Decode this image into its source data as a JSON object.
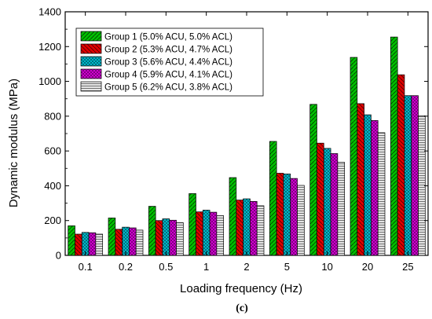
{
  "chart_data": {
    "type": "bar",
    "xlabel": "Loading frequency (Hz)",
    "ylabel": "Dynamic modulus (MPa)",
    "ylim": [
      0,
      1400
    ],
    "yticks": [
      "0",
      "200",
      "400",
      "600",
      "800",
      "1000",
      "1200",
      "1400"
    ],
    "categories": [
      "0.1",
      "0.2",
      "0.5",
      "1",
      "2",
      "5",
      "10",
      "20",
      "25"
    ],
    "legend_position": "top-left",
    "caption": "(c)",
    "series": [
      {
        "name": "Group 1 (5.0% ACU, 5.0% ACL)",
        "color": "#00c000",
        "pattern": "diag-right",
        "values": [
          170,
          215,
          282,
          355,
          447,
          655,
          868,
          1138,
          1255
        ]
      },
      {
        "name": "Group 2 (5.3% ACU, 4.7% ACL)",
        "color": "#e00000",
        "pattern": "diag-left",
        "values": [
          122,
          150,
          200,
          250,
          318,
          472,
          645,
          872,
          1038
        ]
      },
      {
        "name": "Group 3 (5.6% ACU, 4.4% ACL)",
        "color": "#00c8d8",
        "pattern": "crosshatch",
        "values": [
          132,
          162,
          210,
          260,
          325,
          468,
          615,
          808,
          918
        ]
      },
      {
        "name": "Group 4 (5.9% ACU, 4.1% ACL)",
        "color": "#e000e0",
        "pattern": "crosshatch",
        "values": [
          130,
          158,
          202,
          248,
          310,
          442,
          585,
          775,
          918
        ]
      },
      {
        "name": "Group 5 (6.2% ACU, 3.8% ACL)",
        "color": "#c8c8c8",
        "pattern": "horizontal",
        "values": [
          122,
          145,
          188,
          228,
          285,
          402,
          535,
          705,
          802
        ]
      }
    ]
  }
}
